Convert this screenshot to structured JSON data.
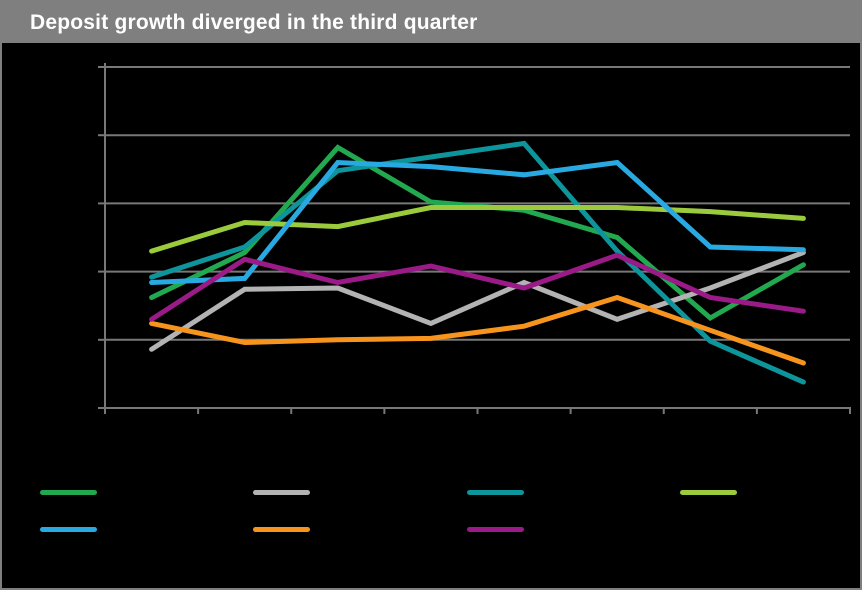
{
  "header": {
    "title": "Deposit growth diverged in the third quarter",
    "background": "#7f7f7f",
    "text_color": "#ffffff"
  },
  "canvas": {
    "background": "#000000",
    "border_color": "#7f7f7f",
    "gridline_color": "#787878",
    "axis_color": "#787878"
  },
  "chart_data": {
    "type": "line",
    "title": "Deposit growth diverged in the third quarter",
    "x": [
      1,
      2,
      3,
      4,
      5,
      6,
      7,
      8
    ],
    "categories": [
      "",
      "",
      "",
      "",
      "",
      "",
      "",
      ""
    ],
    "x_axis": {
      "tick_count": 9,
      "labels_visible": false
    },
    "y_axis": {
      "range": [
        0,
        25
      ],
      "gridline_values": [
        0,
        5,
        10,
        15,
        20,
        25
      ],
      "labels_visible": false
    },
    "grid": "horizontal-only",
    "series": [
      {
        "name": "green",
        "color": "#22A94F",
        "values": [
          8.1,
          11.4,
          19.1,
          15.1,
          14.5,
          12.5,
          6.6,
          10.5
        ]
      },
      {
        "name": "silver",
        "color": "#B3B3B3",
        "values": [
          4.3,
          8.7,
          8.8,
          6.2,
          9.2,
          6.5,
          8.8,
          11.4
        ]
      },
      {
        "name": "teal",
        "color": "#0E949B",
        "values": [
          9.6,
          11.8,
          17.4,
          18.4,
          19.4,
          11.5,
          4.9,
          1.9
        ]
      },
      {
        "name": "lime",
        "color": "#9BCB3C",
        "values": [
          11.5,
          13.6,
          13.3,
          14.7,
          14.7,
          14.7,
          14.4,
          13.9
        ]
      },
      {
        "name": "blue",
        "color": "#29A9E1",
        "values": [
          9.2,
          9.5,
          18.0,
          17.7,
          17.1,
          18.0,
          11.8,
          11.6
        ]
      },
      {
        "name": "orange",
        "color": "#F7941E",
        "values": [
          6.2,
          4.8,
          5.0,
          5.1,
          6.0,
          8.1,
          5.7,
          3.3
        ]
      },
      {
        "name": "magenta",
        "color": "#9A1A87",
        "values": [
          6.5,
          10.9,
          9.2,
          10.4,
          8.8,
          11.2,
          8.1,
          7.1
        ]
      }
    ],
    "legend": {
      "position": "bottom",
      "labels_visible": false,
      "rows": [
        [
          "green",
          "silver",
          "teal",
          "lime"
        ],
        [
          "blue",
          "orange",
          "magenta"
        ]
      ]
    }
  }
}
